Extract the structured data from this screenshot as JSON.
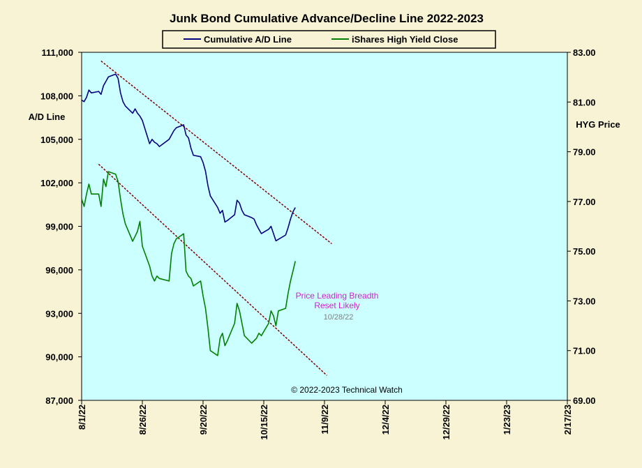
{
  "chart_data": {
    "type": "line",
    "title": "Junk Bond Cumulative  Advance/Decline Line 2022-2023",
    "ylabel_left": "A/D Line",
    "ylabel_right": "HYG Price",
    "x_ticks": [
      "8/1/22",
      "8/26/22",
      "9/20/22",
      "10/15/22",
      "11/9/22",
      "12/4/22",
      "12/29/22",
      "1/23/23",
      "2/17/23"
    ],
    "x_range": [
      "2022-08-01",
      "2023-02-17"
    ],
    "y_left_range": [
      87000,
      111000
    ],
    "y_left_ticks": [
      "87,000",
      "90,000",
      "93,000",
      "96,000",
      "99,000",
      "102,000",
      "105,000",
      "108,000",
      "111,000"
    ],
    "y_right_range": [
      69,
      83
    ],
    "y_right_ticks": [
      "69.00",
      "71.00",
      "73.00",
      "75.00",
      "77.00",
      "79.00",
      "81.00",
      "83.00"
    ],
    "legend": [
      "Cumulative A/D Line",
      "iShares High Yield Close"
    ],
    "colors": {
      "ad_line": "#000080",
      "hyg_line": "#008000",
      "trendline": "#800000",
      "plot_bg": "#ccffff",
      "page_bg": "#f7f3d4"
    },
    "series": [
      {
        "name": "Cumulative A/D Line",
        "axis": "left",
        "points": [
          [
            "2022-08-01",
            107.7
          ],
          [
            "2022-08-02",
            107.6
          ],
          [
            "2022-08-03",
            107.9
          ],
          [
            "2022-08-04",
            108.4
          ],
          [
            "2022-08-05",
            108.2
          ],
          [
            "2022-08-08",
            108.3
          ],
          [
            "2022-08-09",
            108.1
          ],
          [
            "2022-08-10",
            108.7
          ],
          [
            "2022-08-11",
            109.0
          ],
          [
            "2022-08-12",
            109.3
          ],
          [
            "2022-08-15",
            109.5
          ],
          [
            "2022-08-16",
            109.2
          ],
          [
            "2022-08-17",
            108.2
          ],
          [
            "2022-08-18",
            107.6
          ],
          [
            "2022-08-19",
            107.3
          ],
          [
            "2022-08-22",
            106.8
          ],
          [
            "2022-08-23",
            107.1
          ],
          [
            "2022-08-24",
            106.8
          ],
          [
            "2022-08-25",
            106.6
          ],
          [
            "2022-08-26",
            106.3
          ],
          [
            "2022-08-29",
            104.7
          ],
          [
            "2022-08-30",
            105.0
          ],
          [
            "2022-08-31",
            104.8
          ],
          [
            "2022-09-01",
            104.7
          ],
          [
            "2022-09-02",
            104.5
          ],
          [
            "2022-09-06",
            105.0
          ],
          [
            "2022-09-07",
            105.3
          ],
          [
            "2022-09-08",
            105.6
          ],
          [
            "2022-09-09",
            105.8
          ],
          [
            "2022-09-12",
            106.0
          ],
          [
            "2022-09-13",
            105.3
          ],
          [
            "2022-09-14",
            105.1
          ],
          [
            "2022-09-15",
            104.4
          ],
          [
            "2022-09-16",
            103.9
          ],
          [
            "2022-09-19",
            103.8
          ],
          [
            "2022-09-20",
            103.4
          ],
          [
            "2022-09-21",
            102.8
          ],
          [
            "2022-09-22",
            101.8
          ],
          [
            "2022-09-23",
            101.1
          ],
          [
            "2022-09-26",
            100.3
          ],
          [
            "2022-09-27",
            99.9
          ],
          [
            "2022-09-28",
            100.1
          ],
          [
            "2022-09-29",
            99.3
          ],
          [
            "2022-09-30",
            99.4
          ],
          [
            "2022-10-03",
            99.8
          ],
          [
            "2022-10-04",
            100.8
          ],
          [
            "2022-10-05",
            100.6
          ],
          [
            "2022-10-06",
            100.1
          ],
          [
            "2022-10-07",
            99.8
          ],
          [
            "2022-10-10",
            99.6
          ],
          [
            "2022-10-11",
            99.5
          ],
          [
            "2022-10-12",
            99.1
          ],
          [
            "2022-10-13",
            98.8
          ],
          [
            "2022-10-14",
            98.5
          ],
          [
            "2022-10-17",
            98.8
          ],
          [
            "2022-10-18",
            99.0
          ],
          [
            "2022-10-19",
            98.5
          ],
          [
            "2022-10-20",
            98.0
          ],
          [
            "2022-10-21",
            98.1
          ],
          [
            "2022-10-24",
            98.4
          ],
          [
            "2022-10-25",
            98.9
          ],
          [
            "2022-10-26",
            99.5
          ],
          [
            "2022-10-27",
            100.0
          ],
          [
            "2022-10-28",
            100.3
          ]
        ]
      },
      {
        "name": "iShares High Yield Close",
        "axis": "right",
        "points": [
          [
            "2022-08-01",
            77.1
          ],
          [
            "2022-08-02",
            76.8
          ],
          [
            "2022-08-03",
            77.3
          ],
          [
            "2022-08-04",
            77.7
          ],
          [
            "2022-08-05",
            77.3
          ],
          [
            "2022-08-08",
            77.3
          ],
          [
            "2022-08-09",
            76.8
          ],
          [
            "2022-08-10",
            77.9
          ],
          [
            "2022-08-11",
            77.6
          ],
          [
            "2022-08-12",
            78.2
          ],
          [
            "2022-08-15",
            78.1
          ],
          [
            "2022-08-16",
            77.8
          ],
          [
            "2022-08-17",
            77.1
          ],
          [
            "2022-08-18",
            76.5
          ],
          [
            "2022-08-19",
            76.1
          ],
          [
            "2022-08-22",
            75.4
          ],
          [
            "2022-08-23",
            75.6
          ],
          [
            "2022-08-24",
            75.8
          ],
          [
            "2022-08-25",
            76.2
          ],
          [
            "2022-08-26",
            75.2
          ],
          [
            "2022-08-29",
            74.4
          ],
          [
            "2022-08-30",
            74.0
          ],
          [
            "2022-08-31",
            73.8
          ],
          [
            "2022-09-01",
            74.0
          ],
          [
            "2022-09-02",
            73.9
          ],
          [
            "2022-09-06",
            73.8
          ],
          [
            "2022-09-07",
            74.9
          ],
          [
            "2022-09-08",
            75.3
          ],
          [
            "2022-09-09",
            75.5
          ],
          [
            "2022-09-12",
            75.7
          ],
          [
            "2022-09-13",
            74.2
          ],
          [
            "2022-09-14",
            74.0
          ],
          [
            "2022-09-15",
            73.9
          ],
          [
            "2022-09-16",
            73.6
          ],
          [
            "2022-09-19",
            73.8
          ],
          [
            "2022-09-20",
            73.2
          ],
          [
            "2022-09-21",
            72.7
          ],
          [
            "2022-09-22",
            71.9
          ],
          [
            "2022-09-23",
            71.0
          ],
          [
            "2022-09-26",
            70.8
          ],
          [
            "2022-09-27",
            71.5
          ],
          [
            "2022-09-28",
            71.7
          ],
          [
            "2022-09-29",
            71.2
          ],
          [
            "2022-09-30",
            71.4
          ],
          [
            "2022-10-03",
            72.1
          ],
          [
            "2022-10-04",
            72.9
          ],
          [
            "2022-10-05",
            72.6
          ],
          [
            "2022-10-06",
            72.1
          ],
          [
            "2022-10-07",
            71.6
          ],
          [
            "2022-10-10",
            71.3
          ],
          [
            "2022-10-11",
            71.4
          ],
          [
            "2022-10-12",
            71.5
          ],
          [
            "2022-10-13",
            71.7
          ],
          [
            "2022-10-14",
            71.6
          ],
          [
            "2022-10-17",
            72.1
          ],
          [
            "2022-10-18",
            72.6
          ],
          [
            "2022-10-19",
            72.4
          ],
          [
            "2022-10-20",
            72.0
          ],
          [
            "2022-10-21",
            72.6
          ],
          [
            "2022-10-24",
            72.7
          ],
          [
            "2022-10-25",
            73.3
          ],
          [
            "2022-10-26",
            73.8
          ],
          [
            "2022-10-27",
            74.2
          ],
          [
            "2022-10-28",
            74.6
          ]
        ]
      }
    ],
    "trendlines": [
      {
        "axis": "left",
        "from": [
          "2022-08-09",
          110.4
        ],
        "to": [
          "2022-11-12",
          97.8
        ]
      },
      {
        "axis": "right",
        "from": [
          "2022-08-08",
          78.5
        ],
        "to": [
          "2022-11-10",
          70.0
        ]
      }
    ],
    "annotations": {
      "line1": "Price Leading Breadth",
      "line2": "Reset Likely",
      "date": "10/28/22"
    },
    "copyright": "© 2022-2023  Technical Watch"
  }
}
